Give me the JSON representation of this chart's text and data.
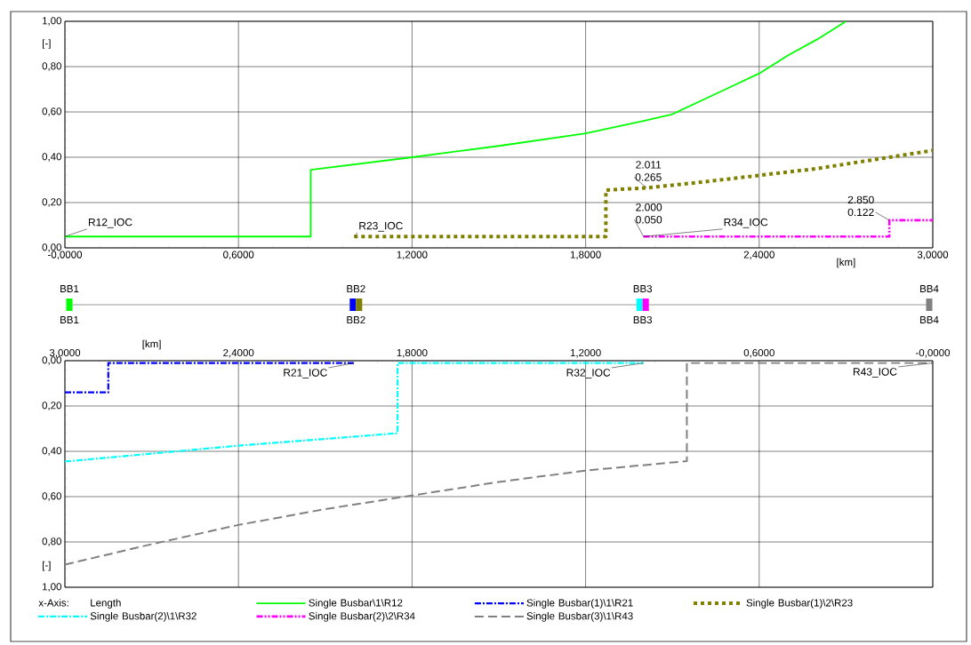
{
  "chart_data": [
    {
      "type": "line",
      "xlabel": "[km]",
      "ylabel": "[-]",
      "xlim": [
        0,
        3
      ],
      "xticks": [
        {
          "value": 0,
          "label": "-0,0000"
        },
        {
          "value": 0.6,
          "label": "0,6000"
        },
        {
          "value": 1.2,
          "label": "1,2000"
        },
        {
          "value": 1.8,
          "label": "1,8000"
        },
        {
          "value": 2.4,
          "label": "2,4000"
        },
        {
          "value": 3,
          "label": "3,0000"
        }
      ],
      "ylim": [
        0,
        1
      ],
      "yticks": [
        {
          "value": 0,
          "label": "0,00"
        },
        {
          "value": 0.2,
          "label": "0,20"
        },
        {
          "value": 0.4,
          "label": "0,40"
        },
        {
          "value": 0.6,
          "label": "0,60"
        },
        {
          "value": 0.8,
          "label": "0,80"
        },
        {
          "value": 1,
          "label": "1,00"
        }
      ],
      "grid": true,
      "series": [
        {
          "name": "Single Busbar\\1\\R12",
          "color": "#00ff00",
          "line_style": "solid",
          "x": [
            0,
            0.85,
            0.85,
            1.2,
            1.5,
            1.8,
            2.0,
            2.1,
            2.2,
            2.3,
            2.4,
            2.5,
            2.6,
            2.7
          ],
          "values": [
            0.05,
            0.05,
            0.345,
            0.4,
            0.45,
            0.505,
            0.56,
            0.59,
            0.65,
            0.71,
            0.77,
            0.85,
            0.92,
            1.0
          ]
        },
        {
          "name": "Single Busbar(1)\\2\\R23",
          "color": "#808000",
          "line_style": "dotted",
          "x": [
            1.0,
            1.87,
            1.87,
            2.011,
            2.2,
            2.4,
            2.6,
            2.8,
            3.0
          ],
          "values": [
            0.05,
            0.05,
            0.255,
            0.265,
            0.29,
            0.32,
            0.35,
            0.39,
            0.43
          ]
        },
        {
          "name": "Single Busbar(2)\\2\\R34",
          "color": "#ff00ff",
          "line_style": "dashdotdot",
          "x": [
            2.0,
            2.85,
            2.85,
            3.0
          ],
          "values": [
            0.05,
            0.05,
            0.122,
            0.122
          ]
        }
      ],
      "annotations": [
        {
          "text": "R12_IOC",
          "x": 0,
          "y": 0.05
        },
        {
          "text": "R23_IOC",
          "x": 1.0,
          "y": 0.05
        },
        {
          "text": "2.011",
          "x": 2.011,
          "y": 0.265
        },
        {
          "text": "0.265",
          "x": 2.011,
          "y": 0.265
        },
        {
          "text": "2.000",
          "x": 2.0,
          "y": 0.05
        },
        {
          "text": "0.050",
          "x": 2.0,
          "y": 0.05
        },
        {
          "text": "R34_IOC",
          "x": 2.0,
          "y": 0.05
        },
        {
          "text": "2.850",
          "x": 2.85,
          "y": 0.122
        },
        {
          "text": "0.122",
          "x": 2.85,
          "y": 0.122
        }
      ]
    },
    {
      "type": "other",
      "annotations": [
        "BB1",
        "BB2",
        "BB3",
        "BB4",
        "BB1",
        "BB2",
        "BB3",
        "BB4"
      ]
    },
    {
      "type": "line",
      "xlabel": "[km]",
      "ylabel": "[-]",
      "xlim": [
        3,
        0
      ],
      "xticks": [
        {
          "value": 3,
          "label": "3,0000"
        },
        {
          "value": 2.4,
          "label": "2,4000"
        },
        {
          "value": 1.8,
          "label": "1,8000"
        },
        {
          "value": 1.2,
          "label": "1,2000"
        },
        {
          "value": 0.6,
          "label": "0,6000"
        },
        {
          "value": 0,
          "label": "-0,0000"
        }
      ],
      "ylim": [
        1,
        0
      ],
      "yticks": [
        {
          "value": 0,
          "label": "0,00"
        },
        {
          "value": 0.2,
          "label": "0,20"
        },
        {
          "value": 0.4,
          "label": "0,40"
        },
        {
          "value": 0.6,
          "label": "0,60"
        },
        {
          "value": 0.8,
          "label": "0,80"
        },
        {
          "value": 1,
          "label": "1,00"
        }
      ],
      "grid": true,
      "legend": "bottom",
      "series": [
        {
          "name": "Single Busbar(1)\\1\\R21",
          "color": "#0000ff",
          "line_style": "dashdot",
          "x": [
            3.0,
            2.85,
            2.85,
            2.0
          ],
          "values": [
            0.14,
            0.14,
            0.01,
            0.01
          ]
        },
        {
          "name": "Single Busbar(2)\\1\\R32",
          "color": "#00ffff",
          "line_style": "dashdot",
          "x": [
            3.0,
            2.4,
            1.85,
            1.85,
            1.0
          ],
          "values": [
            0.445,
            0.375,
            0.32,
            0.01,
            0.01
          ]
        },
        {
          "name": "Single Busbar(3)\\1\\R43",
          "color": "#808080",
          "line_style": "dashed",
          "x": [
            3.0,
            2.7,
            2.4,
            2.1,
            1.8,
            1.5,
            1.2,
            0.85,
            0.85,
            0
          ],
          "values": [
            0.9,
            0.81,
            0.725,
            0.655,
            0.595,
            0.535,
            0.485,
            0.443,
            0.01,
            0.01
          ]
        }
      ],
      "annotations": [
        "x-Axis:",
        "Length",
        {
          "text": "R21_IOC",
          "x": 2.0,
          "y": 0.01
        },
        {
          "text": "R32_IOC",
          "x": 1.0,
          "y": 0.01
        },
        {
          "text": "R43_IOC",
          "x": 0,
          "y": 0.01
        }
      ]
    }
  ]
}
